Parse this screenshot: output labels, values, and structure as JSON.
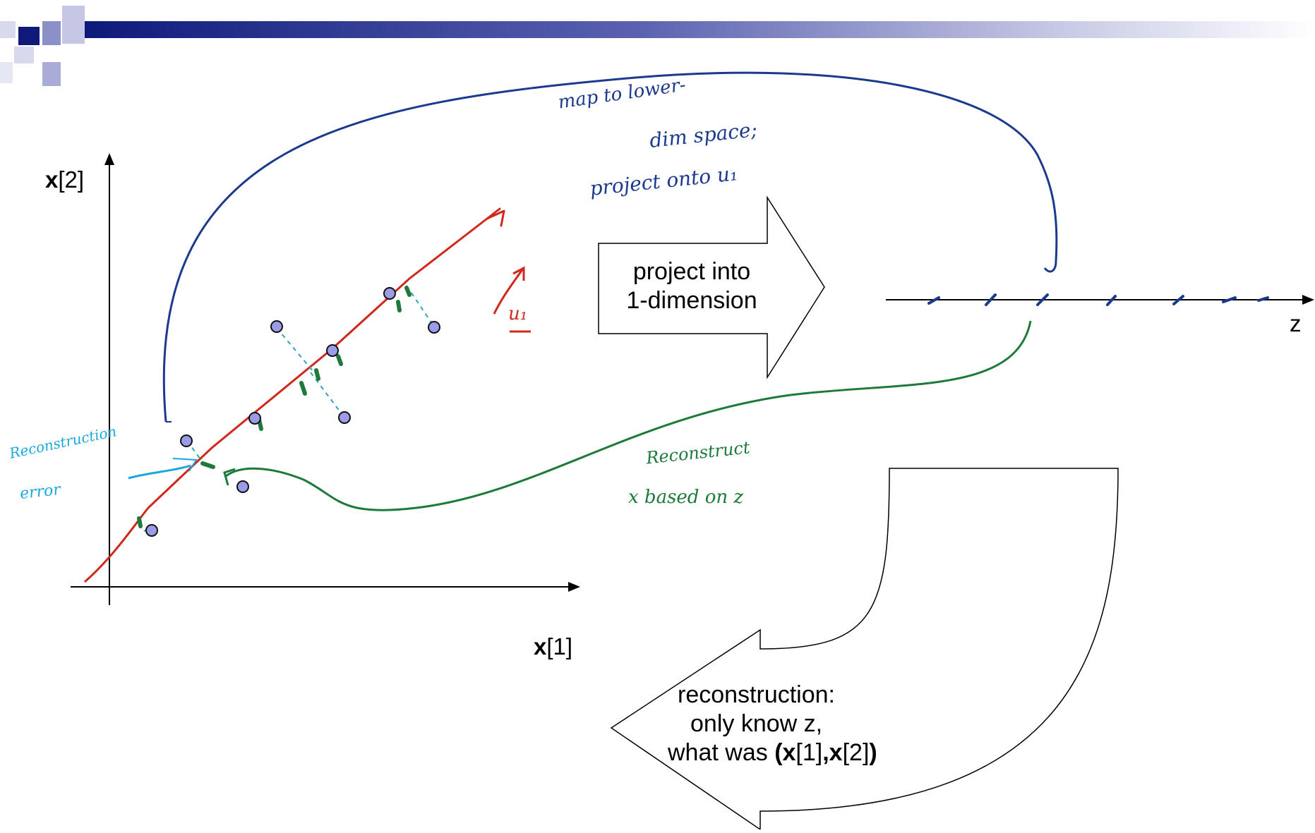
{
  "axes": {
    "y_bold": "x",
    "y_rest": "[2]",
    "x_bold": "x",
    "x_rest": "[1]",
    "z_label": "z"
  },
  "project_arrow": {
    "line1": "project into",
    "line2": "1-dimension"
  },
  "reconstruct_arrow": {
    "line1": "reconstruction:",
    "line2": "only know z,",
    "line3_pre": "what was ",
    "line3_b1": "(x",
    "line3_m1": "[1]",
    "line3_b2": ",x",
    "line3_m2": "[2]",
    "line3_b3": ")"
  },
  "handwriting": {
    "map_line1": "map to lower-",
    "map_line2": "dim space;",
    "map_line3": "project onto u₁",
    "u1": "u₁",
    "reconstruct_line1": "Reconstruct",
    "reconstruct_line2": "x based on z",
    "error_line1": "Reconstruction",
    "error_line2": "error"
  },
  "colors": {
    "header_dark": "#0d1a7a",
    "point_fill": "#9b9be8",
    "principal_line": "#d0281c",
    "projection_green": "#1e7a3a",
    "annotation_blue": "#1b3a8f",
    "error_cyan": "#19a7e0"
  }
}
